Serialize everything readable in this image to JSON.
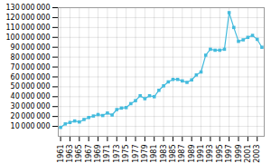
{
  "chart_data": {
    "type": "line",
    "x": [
      1961,
      1962,
      1963,
      1964,
      1965,
      1966,
      1967,
      1968,
      1969,
      1970,
      1971,
      1972,
      1973,
      1974,
      1975,
      1976,
      1977,
      1978,
      1979,
      1980,
      1981,
      1982,
      1983,
      1984,
      1985,
      1986,
      1987,
      1988,
      1989,
      1990,
      1991,
      1992,
      1993,
      1994,
      1995,
      1996,
      1997,
      1998,
      1999,
      2000,
      2001,
      2002,
      2003,
      2004
    ],
    "values": [
      9000000,
      12500000,
      14000000,
      15500000,
      14500000,
      17000000,
      19000000,
      20500000,
      22000000,
      21000000,
      23500000,
      21500000,
      27000000,
      28500000,
      29000000,
      33000000,
      36000000,
      41000000,
      38000000,
      41000000,
      40000000,
      46500000,
      51000000,
      55000000,
      57500000,
      57500000,
      56000000,
      54500000,
      57000000,
      62000000,
      65000000,
      82000000,
      88000000,
      87000000,
      87000000,
      88000000,
      125000000,
      110000000,
      96000000,
      97500000,
      100000000,
      102000000,
      98000000,
      90000000
    ],
    "color": "#44BBDD",
    "marker": "square",
    "xlim": [
      1960.5,
      2004.5
    ],
    "xticks": [
      1961,
      1963,
      1965,
      1967,
      1969,
      1971,
      1973,
      1975,
      1977,
      1979,
      1981,
      1983,
      1985,
      1987,
      1989,
      1991,
      1993,
      1995,
      1997,
      1999,
      2001,
      2003
    ],
    "ylim": [
      0,
      130000000
    ],
    "yticks": [
      {
        "value": 10000000,
        "label": "10 000 000"
      },
      {
        "value": 20000000,
        "label": "20 000 000"
      },
      {
        "value": 30000000,
        "label": "30 000 000"
      },
      {
        "value": 40000000,
        "label": "40 000 000"
      },
      {
        "value": 50000000,
        "label": "50 000 000"
      },
      {
        "value": 60000000,
        "label": "60 000 000"
      },
      {
        "value": 70000000,
        "label": "70 000 000"
      },
      {
        "value": 80000000,
        "label": "80 000 000"
      },
      {
        "value": 90000000,
        "label": "90 000 000"
      },
      {
        "value": 100000000,
        "label": "100 000 000"
      },
      {
        "value": 110000000,
        "label": "110 000 000"
      },
      {
        "value": 120000000,
        "label": "120 000 000"
      },
      {
        "value": 130000000,
        "label": "130 000 000"
      }
    ],
    "grid": true
  }
}
